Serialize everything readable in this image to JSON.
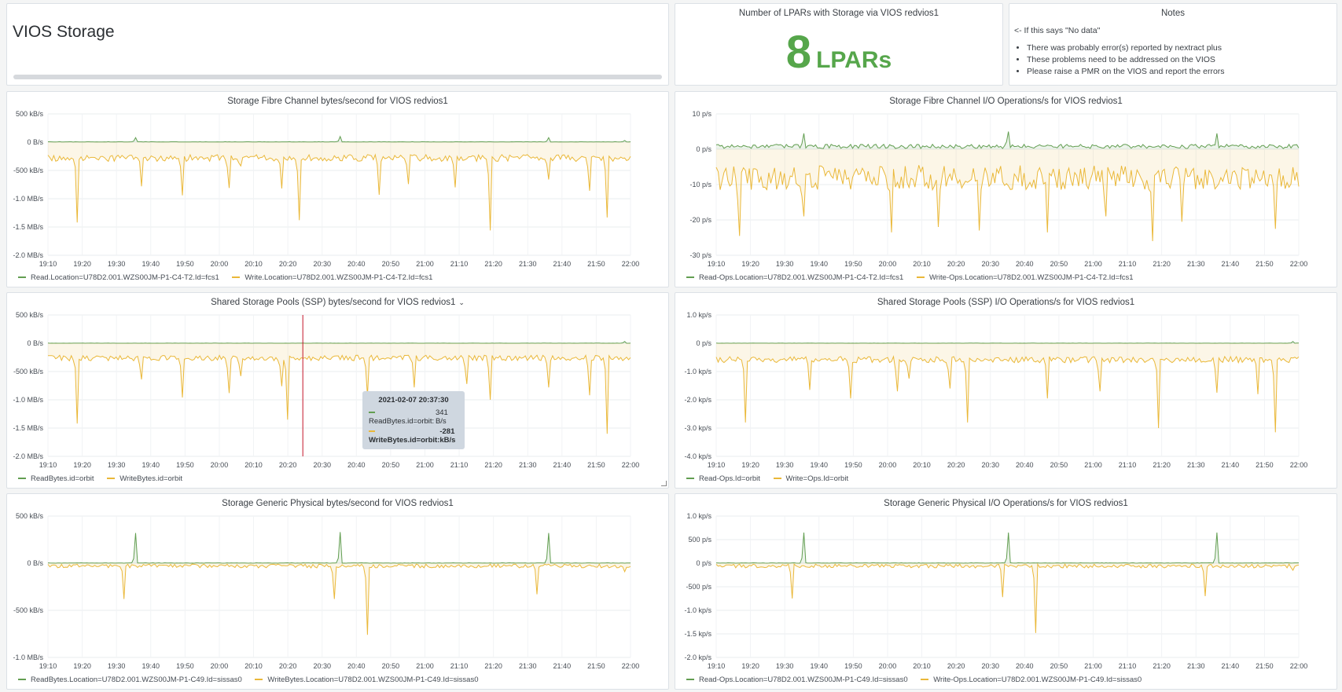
{
  "header": {
    "title": "VIOS Storage"
  },
  "stat": {
    "title": "Number of LPARs with Storage via VIOS redvios1",
    "value": "8",
    "unit": "LPARs",
    "color": "#56a64b"
  },
  "notes": {
    "title": "Notes",
    "intro": "<- If this says \"No data\"",
    "bullets": [
      "There was probably error(s) reported by nextract plus",
      "These problems need to be addressed on the VIOS",
      "Please raise a PMR on the VIOS and report the errors"
    ]
  },
  "colors": {
    "read": "#629e51",
    "write": "#eab839",
    "fill": "#fdf3dc",
    "cursor": "#c4162a"
  },
  "tooltip": {
    "time": "2021-02-07 20:37:30",
    "read_label": "ReadBytes.id=orbit:",
    "read_value": "341 B/s",
    "write_label": "WriteBytes.id=orbit:",
    "write_value": "-281 kB/s"
  },
  "x_ticks": [
    "19:10",
    "19:20",
    "19:30",
    "19:40",
    "19:50",
    "20:00",
    "20:10",
    "20:20",
    "20:30",
    "20:40",
    "20:50",
    "21:00",
    "21:10",
    "21:20",
    "21:30",
    "21:40",
    "21:50",
    "22:00"
  ],
  "chart_data": [
    {
      "id": "c1",
      "type": "line",
      "title": "Storage Fibre Channel bytes/second for VIOS redvios1",
      "ylabel": "",
      "y_unit": "B/s",
      "ylim": [
        -2000000,
        500000
      ],
      "y_ticks": [
        {
          "v": 500000,
          "t": "500 kB/s"
        },
        {
          "v": 0,
          "t": "0 B/s"
        },
        {
          "v": -500000,
          "t": "-500 kB/s"
        },
        {
          "v": -1000000,
          "t": "-1.0 MB/s"
        },
        {
          "v": -1500000,
          "t": "-1.5 MB/s"
        },
        {
          "v": -2000000,
          "t": "-2.0 MB/s"
        }
      ],
      "series": [
        {
          "name": "Read.Location=U78D2.001.WZS00JM-P1-C4-T2.Id=fcs1",
          "color": "#629e51",
          "base": 5000,
          "noise": 3000,
          "spikes": [
            [
              0.15,
              80000
            ],
            [
              0.5,
              100000
            ],
            [
              0.86,
              80000
            ],
            [
              0.99,
              30000
            ]
          ]
        },
        {
          "name": "Write.Location=U78D2.001.WZS00JM-P1-C4-T2.Id=fcs1",
          "color": "#eab839",
          "base": -280000,
          "noise": 60000,
          "spikes": [
            [
              0.05,
              -1420000
            ],
            [
              0.16,
              -780000
            ],
            [
              0.23,
              -940000
            ],
            [
              0.31,
              -810000
            ],
            [
              0.33,
              -420000
            ],
            [
              0.43,
              -1380000
            ],
            [
              0.4,
              -820000
            ],
            [
              0.57,
              -930000
            ],
            [
              0.62,
              -740000
            ],
            [
              0.7,
              -800000
            ],
            [
              0.76,
              -1560000
            ],
            [
              0.86,
              -660000
            ],
            [
              0.93,
              -860000
            ],
            [
              0.96,
              -1330000
            ]
          ]
        }
      ]
    },
    {
      "id": "c2",
      "type": "line",
      "title": "Storage Fibre Channel I/O Operations/s for VIOS redvios1",
      "ylabel": "",
      "y_unit": "p/s",
      "ylim": [
        -30,
        10
      ],
      "y_ticks": [
        {
          "v": 10,
          "t": "10 p/s"
        },
        {
          "v": 0,
          "t": "0 p/s"
        },
        {
          "v": -10,
          "t": "-10 p/s"
        },
        {
          "v": -20,
          "t": "-20 p/s"
        },
        {
          "v": -30,
          "t": "-30 p/s"
        }
      ],
      "series": [
        {
          "name": "Read-Ops.Location=U78D2.001.WZS00JM-P1-C4-T2.Id=fcs1",
          "color": "#629e51",
          "base": 0.8,
          "noise": 0.6,
          "spikes": [
            [
              0.15,
              4.5
            ],
            [
              0.5,
              5
            ],
            [
              0.86,
              4.5
            ]
          ]
        },
        {
          "name": "Write-Ops.Location=U78D2.001.WZS00JM-P1-C4-T2.Id=fcs1",
          "color": "#eab839",
          "base": -8,
          "noise": 3.5,
          "spikes": [
            [
              0.04,
              -24.5
            ],
            [
              0.15,
              -19
            ],
            [
              0.3,
              -23.5
            ],
            [
              0.38,
              -22
            ],
            [
              0.45,
              -23
            ],
            [
              0.57,
              -23.5
            ],
            [
              0.67,
              -19
            ],
            [
              0.75,
              -26
            ],
            [
              0.8,
              -20.5
            ],
            [
              0.96,
              -22.5
            ]
          ]
        }
      ]
    },
    {
      "id": "c3",
      "type": "line",
      "title": "Shared Storage Pools (SSP) bytes/second for VIOS redvios1",
      "ylabel": "",
      "y_unit": "B/s",
      "ylim": [
        -2000000,
        500000
      ],
      "y_ticks": [
        {
          "v": 500000,
          "t": "500 kB/s"
        },
        {
          "v": 0,
          "t": "0 B/s"
        },
        {
          "v": -500000,
          "t": "-500 kB/s"
        },
        {
          "v": -1000000,
          "t": "-1.0 MB/s"
        },
        {
          "v": -1500000,
          "t": "-1.5 MB/s"
        },
        {
          "v": -2000000,
          "t": "-2.0 MB/s"
        }
      ],
      "series": [
        {
          "name": "ReadBytes.id=orbit",
          "color": "#629e51",
          "base": 1000,
          "noise": 1500,
          "spikes": [
            [
              0.99,
              30000
            ]
          ]
        },
        {
          "name": "WriteBytes.id=orbit",
          "color": "#eab839",
          "base": -260000,
          "noise": 50000,
          "spikes": [
            [
              0.05,
              -1420000
            ],
            [
              0.16,
              -640000
            ],
            [
              0.23,
              -960000
            ],
            [
              0.31,
              -880000
            ],
            [
              0.33,
              -580000
            ],
            [
              0.41,
              -1350000
            ],
            [
              0.4,
              -760000
            ],
            [
              0.55,
              -930000
            ],
            [
              0.63,
              -780000
            ],
            [
              0.72,
              -720000
            ],
            [
              0.76,
              -1000000
            ],
            [
              0.86,
              -780000
            ],
            [
              0.93,
              -920000
            ],
            [
              0.96,
              -1600000
            ]
          ]
        }
      ]
    },
    {
      "id": "c4",
      "type": "line",
      "title": "Shared Storage Pools (SSP) I/O Operations/s for VIOS redvios1",
      "ylabel": "",
      "y_unit": "p/s",
      "ylim": [
        -4000,
        1000
      ],
      "y_ticks": [
        {
          "v": 1000,
          "t": "1.0 kp/s"
        },
        {
          "v": 0,
          "t": "0 p/s"
        },
        {
          "v": -1000,
          "t": "-1.0 kp/s"
        },
        {
          "v": -2000,
          "t": "-2.0 kp/s"
        },
        {
          "v": -3000,
          "t": "-3.0 kp/s"
        },
        {
          "v": -4000,
          "t": "-4.0 kp/s"
        }
      ],
      "series": [
        {
          "name": "Read-Ops.Id=orbit",
          "color": "#629e51",
          "base": 2,
          "noise": 3,
          "spikes": [
            [
              0.99,
              60
            ]
          ]
        },
        {
          "name": "Write=Ops.Id=orbit",
          "color": "#eab839",
          "base": -580,
          "noise": 110,
          "spikes": [
            [
              0.05,
              -2800
            ],
            [
              0.16,
              -1650
            ],
            [
              0.23,
              -1950
            ],
            [
              0.31,
              -1700
            ],
            [
              0.33,
              -1250
            ],
            [
              0.43,
              -2800
            ],
            [
              0.4,
              -1600
            ],
            [
              0.57,
              -1950
            ],
            [
              0.66,
              -1700
            ],
            [
              0.76,
              -3000
            ],
            [
              0.86,
              -1750
            ],
            [
              0.93,
              -1800
            ],
            [
              0.96,
              -3150
            ]
          ]
        }
      ]
    },
    {
      "id": "c5",
      "type": "line",
      "title": "Storage Generic Physical bytes/second for VIOS redvios1",
      "ylabel": "",
      "y_unit": "B/s",
      "ylim": [
        -1000000,
        500000
      ],
      "y_ticks": [
        {
          "v": 500000,
          "t": "500 kB/s"
        },
        {
          "v": 0,
          "t": "0 B/s"
        },
        {
          "v": -500000,
          "t": "-500 kB/s"
        },
        {
          "v": -1000000,
          "t": "-1.0 MB/s"
        }
      ],
      "series": [
        {
          "name": "ReadBytes.Location=U78D2.001.WZS00JM-P1-C49.Id=sissas0",
          "color": "#629e51",
          "base": 2000,
          "noise": 2000,
          "spikes": [
            [
              0.15,
              320000
            ],
            [
              0.5,
              330000
            ],
            [
              0.86,
              320000
            ]
          ]
        },
        {
          "name": "WriteBytes.Location=U78D2.001.WZS00JM-P1-C49.Id=sissas0",
          "color": "#eab839",
          "base": -30000,
          "noise": 20000,
          "spikes": [
            [
              0.13,
              -380000
            ],
            [
              0.49,
              -380000
            ],
            [
              0.55,
              -760000
            ],
            [
              0.84,
              -330000
            ],
            [
              0.99,
              -90000
            ]
          ]
        }
      ]
    },
    {
      "id": "c6",
      "type": "line",
      "title": "Storage Generic Physical I/O Operations/s for VIOS redvios1",
      "ylabel": "",
      "y_unit": "p/s",
      "ylim": [
        -2000,
        1000
      ],
      "y_ticks": [
        {
          "v": 1000,
          "t": "1.0 kp/s"
        },
        {
          "v": 500,
          "t": "500 p/s"
        },
        {
          "v": 0,
          "t": "0 p/s"
        },
        {
          "v": -500,
          "t": "-500 p/s"
        },
        {
          "v": -1000,
          "t": "-1.0 kp/s"
        },
        {
          "v": -1500,
          "t": "-1.5 kp/s"
        },
        {
          "v": -2000,
          "t": "-2.0 kp/s"
        }
      ],
      "series": [
        {
          "name": "Read-Ops.Location=U78D2.001.WZS00JM-P1-C49.Id=sissas0",
          "color": "#629e51",
          "base": 4,
          "noise": 4,
          "spikes": [
            [
              0.15,
              650
            ],
            [
              0.5,
              650
            ],
            [
              0.86,
              650
            ]
          ]
        },
        {
          "name": "Write-Ops.Location=U78D2.001.WZS00JM-P1-C49.Id=sissas0",
          "color": "#eab839",
          "base": -60,
          "noise": 40,
          "spikes": [
            [
              0.13,
              -750
            ],
            [
              0.49,
              -720
            ],
            [
              0.55,
              -1480
            ],
            [
              0.84,
              -700
            ],
            [
              0.99,
              -150
            ]
          ]
        }
      ]
    }
  ]
}
